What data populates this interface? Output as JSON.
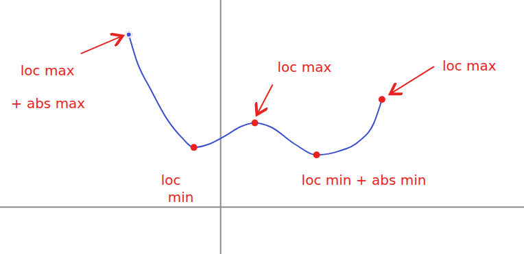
{
  "chart_data": {
    "type": "line",
    "x": [
      -3.33,
      -3.03,
      -2.54,
      -1.92,
      -1.42,
      -0.97,
      -0.42,
      0.2,
      0.7,
      1.24,
      1.82,
      2.69,
      3.48,
      4.3,
      5.05,
      5.55,
      5.85
    ],
    "values": [
      6.25,
      5.26,
      4.27,
      3.15,
      2.53,
      2.16,
      2.28,
      2.6,
      2.9,
      3.05,
      2.9,
      2.28,
      1.89,
      2.03,
      2.41,
      3.03,
      3.9
    ],
    "xlim": [
      -8,
      11
    ],
    "ylim": [
      -1.7,
      7.5
    ],
    "tick_labels": false,
    "color": "#3a4fd0",
    "annotations": [
      {
        "lines": [
          "loc max",
          "+ abs max"
        ],
        "x": -3.33,
        "y": 6.25
      },
      {
        "lines": [
          "loc",
          "min"
        ],
        "x": -0.97,
        "y": 2.16
      },
      {
        "lines": [
          "loc max"
        ],
        "x": 1.24,
        "y": 3.05
      },
      {
        "lines": [
          "loc max"
        ],
        "x": 5.85,
        "y": 3.9
      },
      {
        "lines": [
          "loc min + abs min"
        ],
        "x": 3.48,
        "y": 1.89
      }
    ]
  }
}
